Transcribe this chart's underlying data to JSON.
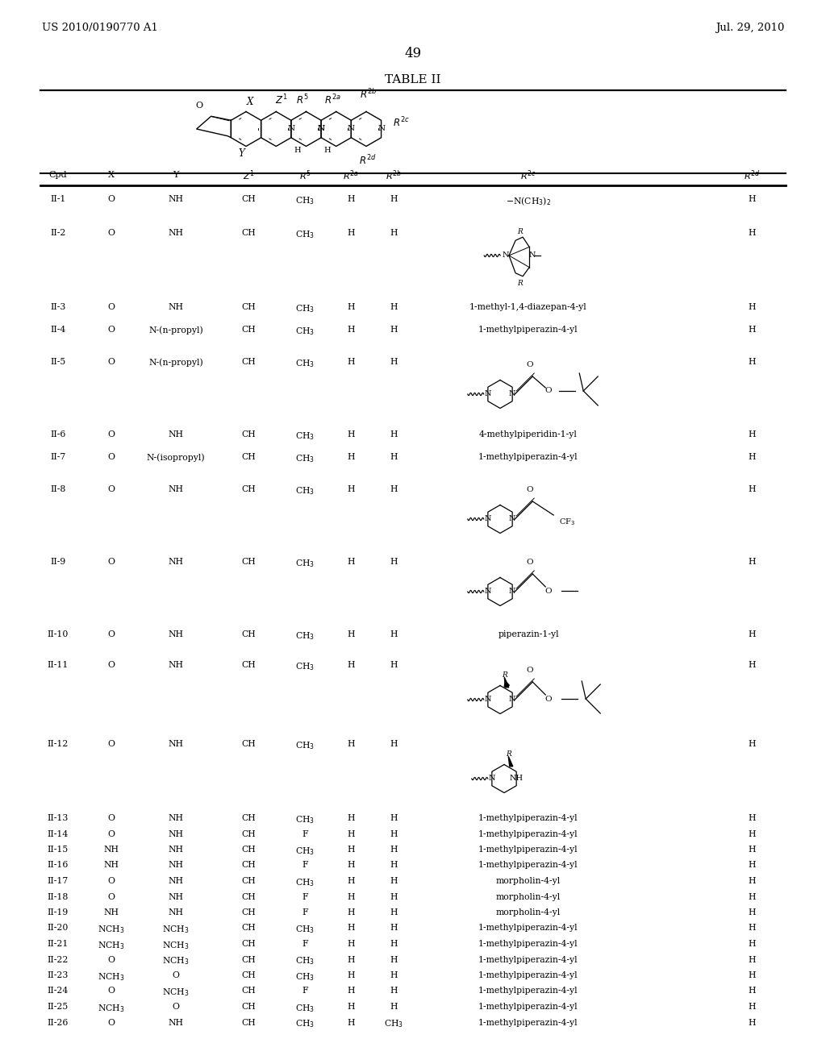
{
  "patent_left": "US 2010/0190770 A1",
  "patent_right": "Jul. 29, 2010",
  "page_number": "49",
  "table_title": "TABLE II",
  "col_headers": [
    "Cpd",
    "X",
    "Y",
    "Z1",
    "R5",
    "R2a",
    "R2b",
    "R2c",
    "R2d"
  ],
  "bg_color": "#ffffff",
  "text_color": "#000000"
}
